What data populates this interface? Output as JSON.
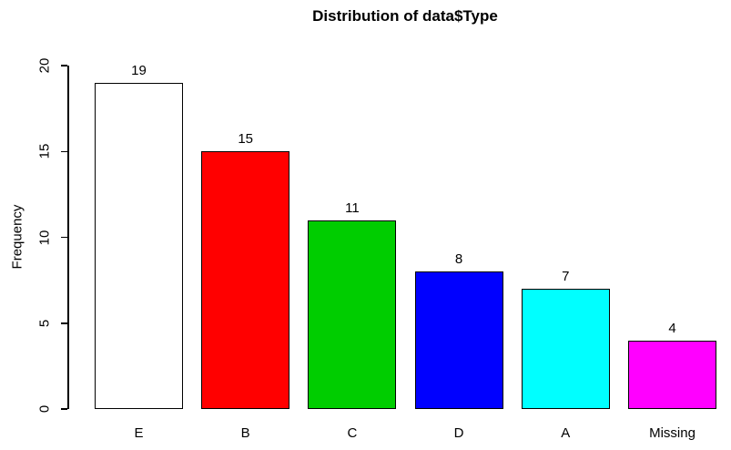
{
  "chart_data": {
    "type": "bar",
    "title": "Distribution of data$Type",
    "xlabel": "",
    "ylabel": "Frequency",
    "categories": [
      "E",
      "B",
      "C",
      "D",
      "A",
      "Missing"
    ],
    "values": [
      19,
      15,
      11,
      8,
      7,
      4
    ],
    "bar_value_labels": [
      "19",
      "15",
      "11",
      "8",
      "7",
      "4"
    ],
    "colors": [
      "#FFFFFF",
      "#FF0000",
      "#00CD00",
      "#0000FF",
      "#00FFFF",
      "#FF00FF"
    ],
    "bar_border_color": "#000000",
    "yticks": [
      0,
      5,
      10,
      15,
      20
    ],
    "ylim": [
      0,
      20
    ],
    "grid": false,
    "legend": null,
    "background_color": "#FFFFFF"
  }
}
